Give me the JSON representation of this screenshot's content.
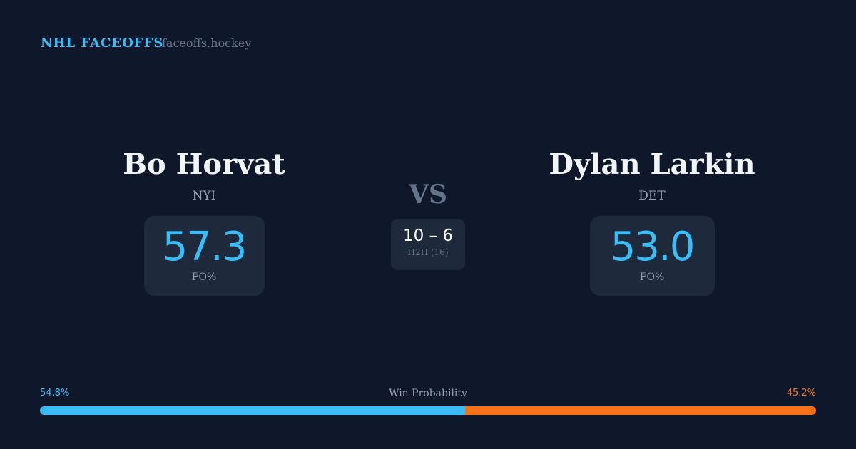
{
  "header": {
    "brand": "NHL FACEOFFS",
    "site": "faceoffs.hockey"
  },
  "left": {
    "name": "Bo Horvat",
    "team": "NYI",
    "fo_pct": "57.3",
    "fo_label": "FO%"
  },
  "right": {
    "name": "Dylan Larkin",
    "team": "DET",
    "fo_pct": "53.0",
    "fo_label": "FO%"
  },
  "vs": "VS",
  "h2h": {
    "score": "10 – 6",
    "label": "H2H (16)"
  },
  "win_prob": {
    "label": "Win Probability",
    "left": "54.8%",
    "right": "45.2%",
    "left_value": 54.8,
    "right_value": 45.2,
    "left_color": "#38bdf8",
    "right_color": "#f97316"
  }
}
